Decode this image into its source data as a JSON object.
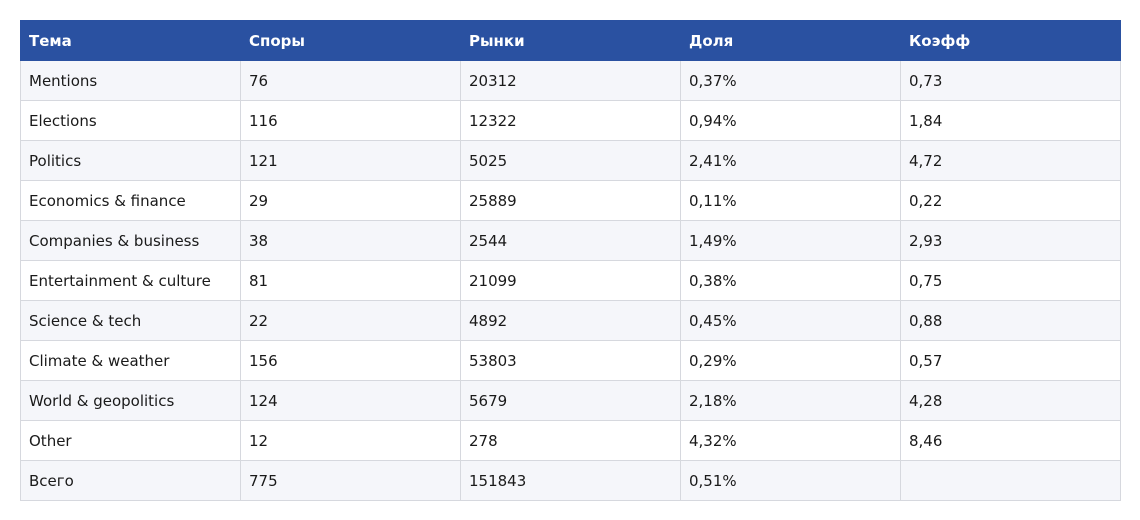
{
  "table": {
    "headers": [
      "Тема",
      "Споры",
      "Рынки",
      "Доля",
      "Коэфф"
    ],
    "rows": [
      [
        "Mentions",
        "76",
        "20312",
        "0,37%",
        "0,73"
      ],
      [
        "Elections",
        "116",
        "12322",
        "0,94%",
        "1,84"
      ],
      [
        "Politics",
        "121",
        "5025",
        "2,41%",
        "4,72"
      ],
      [
        "Economics & finance",
        "29",
        "25889",
        "0,11%",
        "0,22"
      ],
      [
        "Companies & business",
        "38",
        "2544",
        "1,49%",
        "2,93"
      ],
      [
        "Entertainment & culture",
        "81",
        "21099",
        "0,38%",
        "0,75"
      ],
      [
        "Science & tech",
        "22",
        "4892",
        "0,45%",
        "0,88"
      ],
      [
        "Climate & weather",
        "156",
        "53803",
        "0,29%",
        "0,57"
      ],
      [
        "World & geopolitics",
        "124",
        "5679",
        "2,18%",
        "4,28"
      ],
      [
        "Other",
        "12",
        "278",
        "4,32%",
        "8,46"
      ],
      [
        "Всего",
        "775",
        "151843",
        "0,51%",
        ""
      ]
    ]
  },
  "colors": {
    "header_bg": "#2a51a1",
    "header_text": "#ffffff",
    "row_alt_bg": "#f5f6fa",
    "border": "#d6d8de"
  }
}
